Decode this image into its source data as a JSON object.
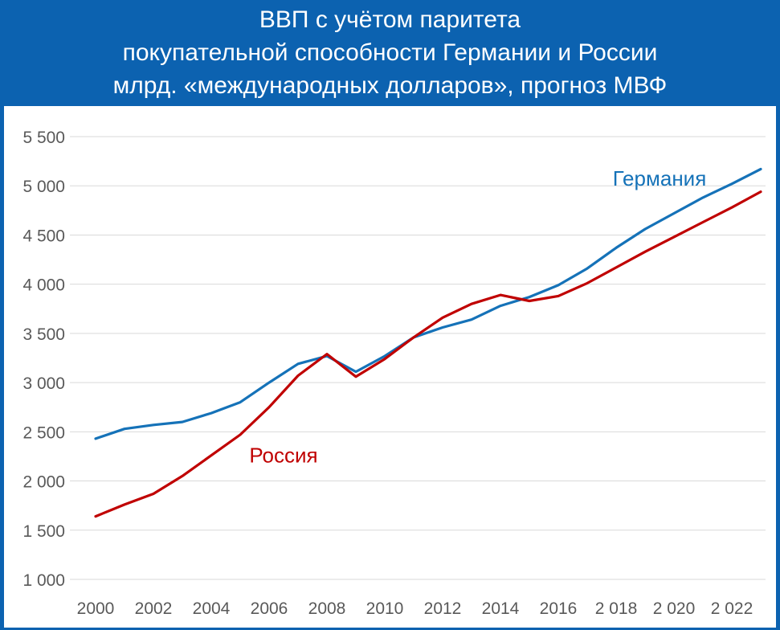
{
  "header": {
    "title_line1": "ВВП с учётом паритета",
    "title_line2": "покупательной способности Германии и России",
    "title_line3": "млрд. «международных долларов», прогноз МВФ"
  },
  "colors": {
    "background": "#0c62b0",
    "germany": "#1572b8",
    "russia": "#c00000",
    "grid": "#d9d9d9",
    "tick_text": "#595959"
  },
  "chart_data": {
    "type": "line",
    "title": "ВВП с учётом паритета покупательной способности Германии и России млрд. «международных долларов», прогноз МВФ",
    "xlabel": "",
    "ylabel": "",
    "ylim": [
      1000,
      5500
    ],
    "grid": true,
    "y_ticks": [
      1000,
      1500,
      2000,
      2500,
      3000,
      3500,
      4000,
      4500,
      5000,
      5500
    ],
    "y_tick_labels": [
      "1 000",
      "1 500",
      "2 000",
      "2 500",
      "3 000",
      "3 500",
      "4 000",
      "4 500",
      "5 000",
      "5 500"
    ],
    "x": [
      2000,
      2001,
      2002,
      2003,
      2004,
      2005,
      2006,
      2007,
      2008,
      2009,
      2010,
      2011,
      2012,
      2013,
      2014,
      2015,
      2016,
      2017,
      2018,
      2019,
      2020,
      2021,
      2022,
      2023
    ],
    "x_tick_labels": [
      "2000",
      "2002",
      "2004",
      "2006",
      "2008",
      "2010",
      "2012",
      "2014",
      "2016",
      "2 018",
      "2 020",
      "2 022"
    ],
    "x_tick_values": [
      2000,
      2002,
      2004,
      2006,
      2008,
      2010,
      2012,
      2014,
      2016,
      2018,
      2020,
      2022
    ],
    "series": [
      {
        "name": "Германия",
        "color": "#1572b8",
        "values": [
          2430,
          2530,
          2570,
          2600,
          2690,
          2800,
          3000,
          3190,
          3270,
          3110,
          3270,
          3460,
          3560,
          3640,
          3780,
          3870,
          3990,
          4160,
          4370,
          4560,
          4720,
          4880,
          5020,
          5170
        ]
      },
      {
        "name": "Россия",
        "color": "#c00000",
        "values": [
          1640,
          1760,
          1870,
          2050,
          2260,
          2470,
          2750,
          3070,
          3290,
          3060,
          3240,
          3460,
          3660,
          3800,
          3890,
          3830,
          3880,
          4010,
          4170,
          4330,
          4480,
          4630,
          4780,
          4940
        ]
      }
    ],
    "annotations": [
      {
        "text": "Германия",
        "series": "Германия",
        "x": 2019.5,
        "y": 5000
      },
      {
        "text": "Россия",
        "series": "Россия",
        "x": 2006.5,
        "y": 2190
      }
    ]
  }
}
